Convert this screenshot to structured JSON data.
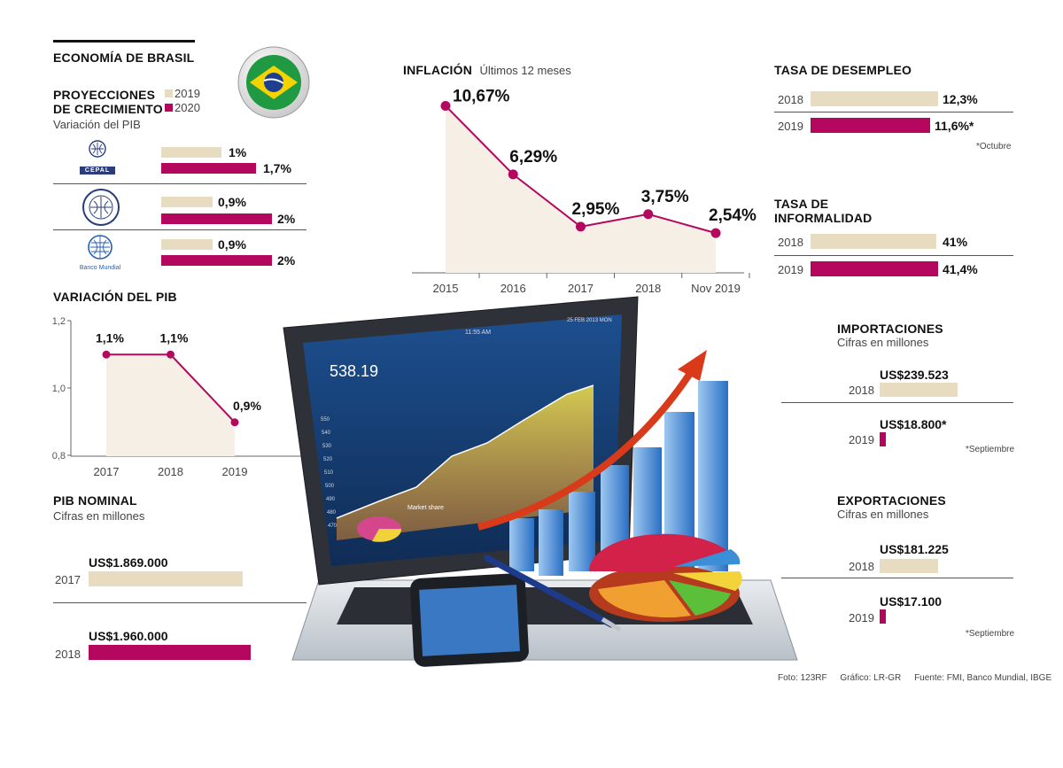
{
  "colors": {
    "c2019": "#e8dcc0",
    "c2020": "#b3085e",
    "area": "#f6efe6",
    "line": "#b3085e"
  },
  "header": {
    "title": "ECONOMÍA DE BRASIL"
  },
  "projections": {
    "title_line1": "PROYECCIONES",
    "title_line2": "DE CRECIMIENTO",
    "subtitle": "Variación del PIB",
    "legend": [
      "2019",
      "2020"
    ],
    "orgs": [
      {
        "name": "CEPAL",
        "logo_text": "CEPAL",
        "v2019": 1.0,
        "v2020": 1.7,
        "l2019": "1%",
        "l2020": "1,7%"
      },
      {
        "name": "FMI",
        "logo_text": "",
        "v2019": 0.9,
        "v2020": 2.0,
        "l2019": "0,9%",
        "l2020": "2%"
      },
      {
        "name": "Banco Mundial",
        "logo_text": "Banco Mundial",
        "v2019": 0.9,
        "v2020": 2.0,
        "l2019": "0,9%",
        "l2020": "2%"
      }
    ]
  },
  "chart_data": [
    {
      "type": "area",
      "title": "INFLACIÓN",
      "subtitle": "Últimos 12 meses",
      "categories": [
        "2015",
        "2016",
        "2017",
        "2018",
        "Nov 2019"
      ],
      "values": [
        10.67,
        6.29,
        2.95,
        3.75,
        2.54
      ],
      "labels": [
        "10,67%",
        "6,29%",
        "2,95%",
        "3,75%",
        "2,54%"
      ],
      "ylim": [
        0,
        12
      ]
    },
    {
      "type": "area",
      "title": "VARIACIÓN DEL PIB",
      "categories": [
        "2017",
        "2018",
        "2019"
      ],
      "values": [
        1.1,
        1.1,
        0.9
      ],
      "labels": [
        "1,1%",
        "1,1%",
        "0,9%"
      ],
      "yticks": [
        "1,2",
        "1,0",
        "0,8"
      ],
      "ylim": [
        0.8,
        1.2
      ]
    }
  ],
  "unemployment": {
    "title": "TASA DE DESEMPLEO",
    "rows": [
      {
        "year": "2018",
        "value": 12.3,
        "label": "12,3%"
      },
      {
        "year": "2019",
        "value": 11.6,
        "label": "11,6%*"
      }
    ],
    "note": "*Octubre"
  },
  "informality": {
    "title_line1": "TASA DE",
    "title_line2": "INFORMALIDAD",
    "rows": [
      {
        "year": "2018",
        "value": 41,
        "label": "41%"
      },
      {
        "year": "2019",
        "value": 41.4,
        "label": "41,4%"
      }
    ]
  },
  "imports": {
    "title": "IMPORTACIONES",
    "subtitle": "Cifras en millones",
    "rows": [
      {
        "year": "2018",
        "value": 239523,
        "label": "US$239.523"
      },
      {
        "year": "2019",
        "value": 18800,
        "label": "US$18.800*"
      }
    ],
    "note": "*Septiembre"
  },
  "exports": {
    "title": "EXPORTACIONES",
    "subtitle": "Cifras en millones",
    "rows": [
      {
        "year": "2018",
        "value": 181225,
        "label": "US$181.225"
      },
      {
        "year": "2019",
        "value": 17100,
        "label": "US$17.100"
      }
    ],
    "note": "*Septiembre"
  },
  "gdp_nominal": {
    "title": "PIB NOMINAL",
    "subtitle": "Cifras en millones",
    "rows": [
      {
        "year": "2017",
        "value": 1869000,
        "label": "US$1.869.000"
      },
      {
        "year": "2018",
        "value": 1960000,
        "label": "US$1.960.000"
      }
    ]
  },
  "laptop_screen": {
    "price": "538.19",
    "time": "11:55 AM",
    "date": "25 FEB 2013 MON",
    "market_label": "Market share",
    "yaxis": [
      "550",
      "540",
      "530",
      "520",
      "510",
      "500",
      "490",
      "480",
      "470"
    ]
  },
  "credits": {
    "photo": "Foto: 123RF",
    "graphic": "Gráfico: LR-GR",
    "source": "Fuente: FMI, Banco Mundial, IBGE"
  }
}
